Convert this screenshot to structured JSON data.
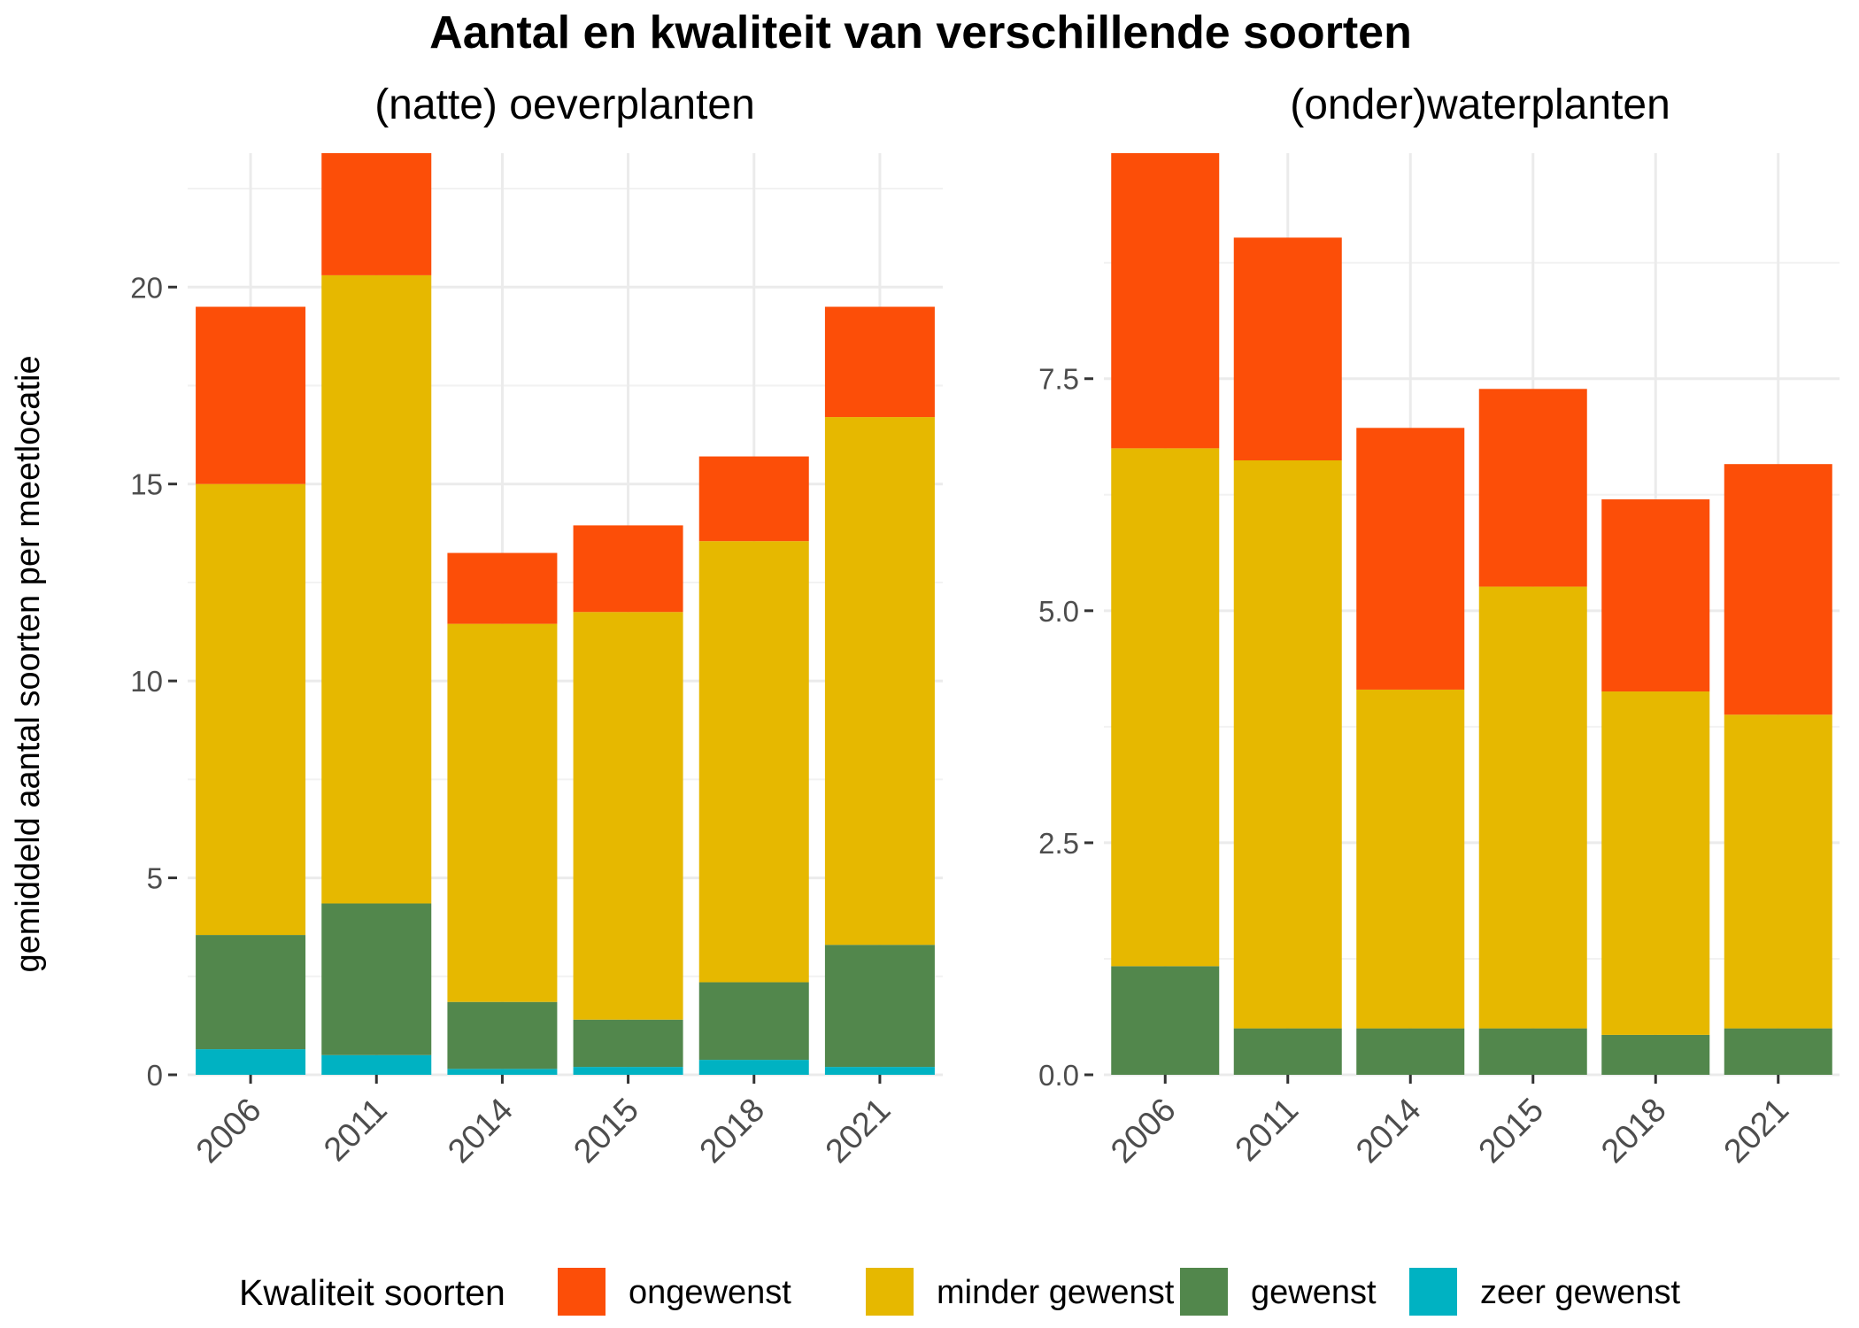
{
  "figure": {
    "title": "Aantal en kwaliteit van verschillende soorten",
    "ylabel": "gemiddeld aantal soorten per meetlocatie"
  },
  "legend": {
    "title": "Kwaliteit soorten",
    "items": [
      {
        "label": "ongewenst",
        "color": "#fc4e08"
      },
      {
        "label": "minder gewenst",
        "color": "#e6b800"
      },
      {
        "label": "gewenst",
        "color": "#52874c"
      },
      {
        "label": "zeer gewenst",
        "color": "#00b2c2"
      }
    ]
  },
  "chart_data": [
    {
      "type": "bar",
      "stacked": true,
      "title": "(natte) oeverplanten",
      "categories": [
        "2006",
        "2011",
        "2014",
        "2015",
        "2018",
        "2021"
      ],
      "ylim": [
        0,
        23.4
      ],
      "yticks": [
        0,
        5,
        10,
        15,
        20
      ],
      "ytick_labels": [
        "0",
        "5",
        "10",
        "15",
        "20"
      ],
      "grid": true,
      "legend_position": "bottom",
      "series": [
        {
          "name": "zeer gewenst",
          "color": "#00b2c2",
          "values": [
            0.65,
            0.5,
            0.15,
            0.2,
            0.38,
            0.2
          ]
        },
        {
          "name": "gewenst",
          "color": "#52874c",
          "values": [
            2.9,
            3.85,
            1.7,
            1.2,
            1.97,
            3.1
          ]
        },
        {
          "name": "minder gewenst",
          "color": "#e6b800",
          "values": [
            11.45,
            15.95,
            9.6,
            10.35,
            11.2,
            13.4
          ]
        },
        {
          "name": "ongewenst",
          "color": "#fc4e08",
          "values": [
            4.5,
            3.1,
            1.8,
            2.2,
            2.15,
            2.8
          ]
        }
      ]
    },
    {
      "type": "bar",
      "stacked": true,
      "title": "(onder)waterplanten",
      "categories": [
        "2006",
        "2011",
        "2014",
        "2015",
        "2018",
        "2021"
      ],
      "ylim": [
        0,
        9.93
      ],
      "yticks": [
        0,
        2.5,
        5,
        7.5
      ],
      "ytick_labels": [
        "0.0",
        "2.5",
        "5.0",
        "7.5"
      ],
      "grid": true,
      "legend_position": "bottom",
      "series": [
        {
          "name": "gewenst",
          "color": "#52874c",
          "values": [
            1.17,
            0.5,
            0.5,
            0.5,
            0.43,
            0.5
          ]
        },
        {
          "name": "minder gewenst",
          "color": "#e6b800",
          "values": [
            5.58,
            6.12,
            3.65,
            4.76,
            3.7,
            3.38
          ]
        },
        {
          "name": "ongewenst",
          "color": "#fc4e08",
          "values": [
            3.18,
            2.4,
            2.82,
            2.13,
            2.07,
            2.7
          ]
        }
      ]
    }
  ]
}
